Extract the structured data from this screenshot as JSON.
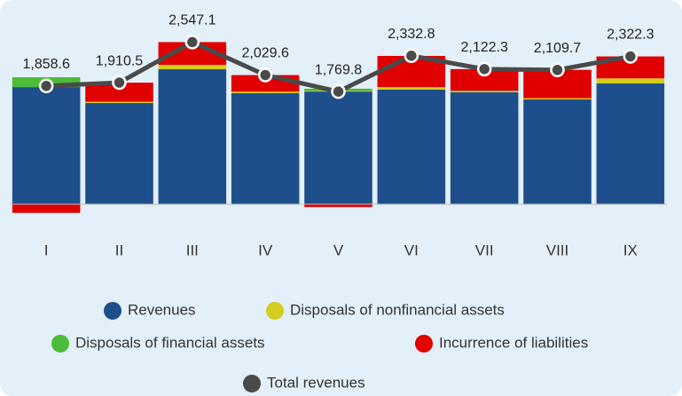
{
  "chart_data": {
    "type": "bar",
    "stacked": true,
    "categories": [
      "I",
      "II",
      "III",
      "IV",
      "V",
      "VI",
      "VII",
      "VIII",
      "IX"
    ],
    "series": [
      {
        "name": "Revenues",
        "color": "#1f4e8c",
        "values": [
          1840,
          1590,
          2120,
          1744,
          1770,
          1800,
          1758,
          1646,
          1897
        ]
      },
      {
        "name": "Disposals of nonfinancial assets",
        "color": "#d4cc1e",
        "values": [
          0,
          20,
          70,
          25,
          10,
          40,
          15,
          20,
          80
        ]
      },
      {
        "name": "Disposals of financial assets",
        "color": "#4cbb3a",
        "values": [
          155,
          0,
          0,
          0,
          35,
          0,
          10,
          0,
          0
        ]
      },
      {
        "name": "Incurrence of liabilities",
        "color": "#e00000",
        "values": [
          -136,
          300,
          357,
          260,
          -45,
          490,
          340,
          445,
          345
        ]
      },
      {
        "name": "Total revenues",
        "color": "#4a4a4a",
        "type": "line",
        "values": [
          1858.6,
          1910.5,
          2547.1,
          2029.6,
          1769.8,
          2332.8,
          2122.3,
          2109.7,
          2322.3
        ],
        "value_labels": [
          "1,858.6",
          "1,910.5",
          "2,547.1",
          "2,029.6",
          "1,769.8",
          "2,332.8",
          "2,122.3",
          "2,109.7",
          "2,322.3"
        ]
      }
    ],
    "ylim": [
      -200,
      2700
    ],
    "legend": "bottom"
  }
}
